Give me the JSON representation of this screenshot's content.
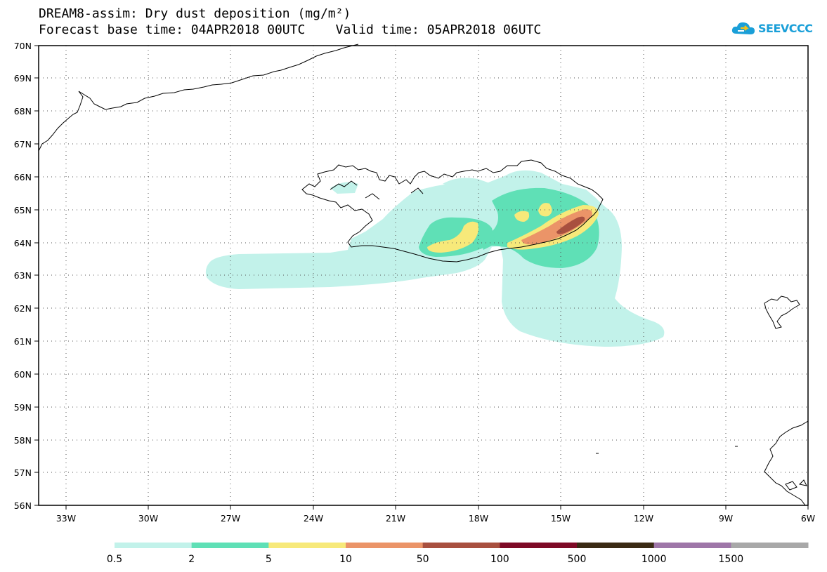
{
  "header": {
    "title_line1": "DREAM8-assim: Dry dust deposition (mg/m²)",
    "title_line2": "Forecast base time: 04APR2018 00UTC    Valid time: 05APR2018 06UTC"
  },
  "logo": {
    "text": "SEEVCCC",
    "color": "#1a9fd8"
  },
  "axes": {
    "lat_labels": [
      "70N",
      "69N",
      "68N",
      "67N",
      "66N",
      "65N",
      "64N",
      "63N",
      "62N",
      "61N",
      "60N",
      "59N",
      "58N",
      "57N",
      "56N"
    ],
    "lon_labels": [
      "33W",
      "30W",
      "27W",
      "24W",
      "21W",
      "18W",
      "15W",
      "12W",
      "9W",
      "6W"
    ],
    "grid": "dotted"
  },
  "legend": {
    "labels": [
      "0.5",
      "2",
      "5",
      "10",
      "50",
      "100",
      "500",
      "1000",
      "1500"
    ],
    "colors": [
      "#c2f2ea",
      "#5fe0b6",
      "#f7e97a",
      "#eb9468",
      "#a8503f",
      "#7e0a26",
      "#3a2a14",
      "#9e76a8",
      "#a8a8a8"
    ]
  },
  "map": {
    "region": "Iceland and North Atlantic",
    "shading_colors": {
      "lt2": "#c2f2ea",
      "2to5": "#5fe0b6",
      "5to10": "#f7e97a",
      "10to50": "#eb9468",
      "50to100": "#a8503f"
    }
  }
}
